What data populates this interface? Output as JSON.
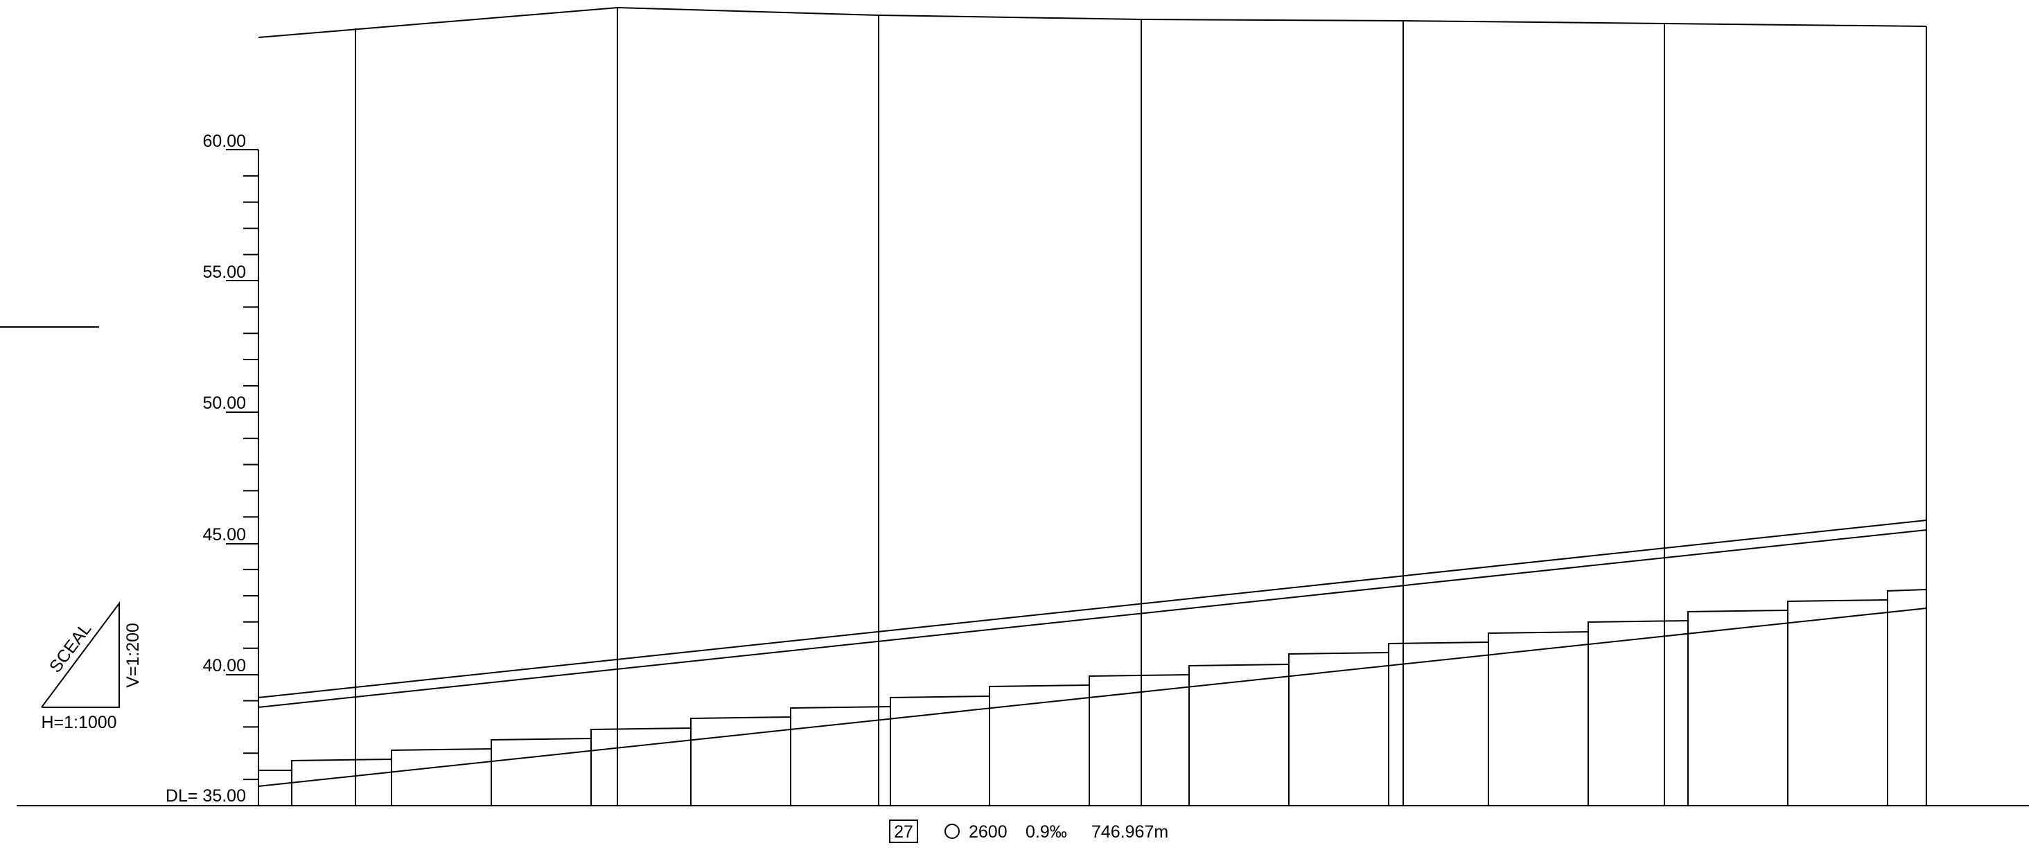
{
  "axis": {
    "labels": [
      "60.00",
      "55.00",
      "50.00",
      "45.00",
      "40.00",
      "DL= 35.00"
    ],
    "values": [
      60,
      55,
      50,
      45,
      40,
      35
    ],
    "datum": 35,
    "max": 60
  },
  "scale": {
    "rotated_label": "SCEAL",
    "vertical": "V=1:200",
    "horizontal": "H=1:1000"
  },
  "footer": {
    "number": "27",
    "diameter": "2600",
    "slope": "0.9‰",
    "length": "746.967m"
  }
}
